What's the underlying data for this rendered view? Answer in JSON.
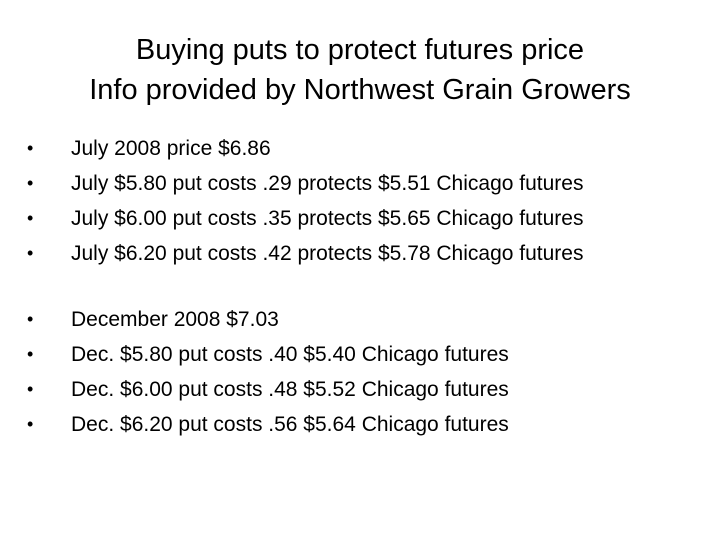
{
  "title": {
    "line1": "Buying puts to protect futures price",
    "line2": "Info provided by Northwest Grain Growers"
  },
  "bullet_glyph": "•",
  "july": {
    "items": [
      "July 2008 price $6.86",
      "July $5.80 put costs .29 protects $5.51 Chicago futures",
      "July $6.00 put costs .35 protects $5.65 Chicago futures",
      "July $6.20 put costs .42 protects $5.78 Chicago futures"
    ]
  },
  "december": {
    "items": [
      "December 2008 $7.03",
      "Dec. $5.80 put costs .40 $5.40 Chicago futures",
      "Dec. $6.00 put costs .48 $5.52 Chicago futures",
      "Dec. $6.20 put costs .56 $5.64 Chicago futures"
    ]
  }
}
